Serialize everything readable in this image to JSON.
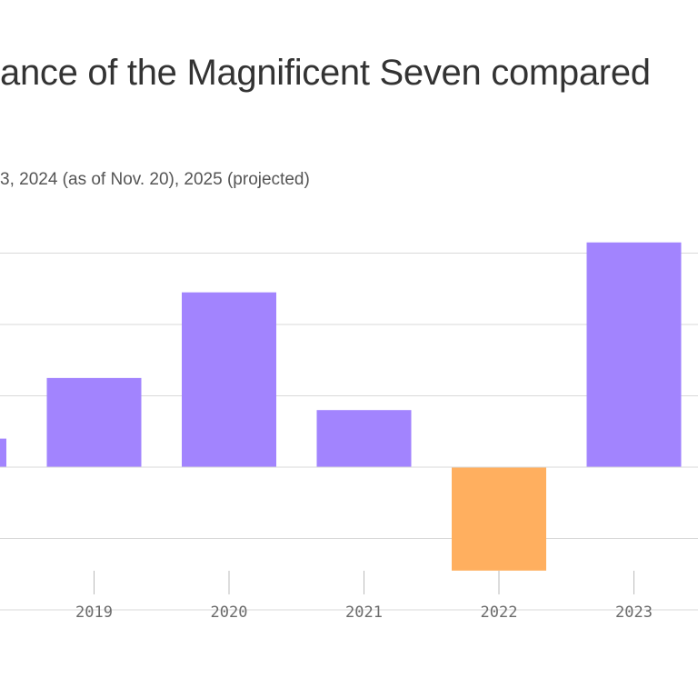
{
  "title": "ance of the Magnificent Seven compared",
  "subtitle": "3, 2024 (as of Nov. 20), 2025 (projected)",
  "colors": {
    "positive": "#a284fe",
    "negative": "#ffaf5f",
    "grid": "#d9d9d9",
    "tick": "#bbbbbb"
  },
  "chart_data": {
    "type": "bar",
    "title": "",
    "xlabel": "",
    "ylabel": "",
    "categories": [
      "",
      "2019",
      "2020",
      "2021",
      "2022",
      "2023"
    ],
    "values": [
      4,
      12.5,
      24.5,
      8,
      -14.5,
      31.5
    ],
    "ylim": [
      -20,
      30
    ],
    "grid": true,
    "legend": "none"
  }
}
